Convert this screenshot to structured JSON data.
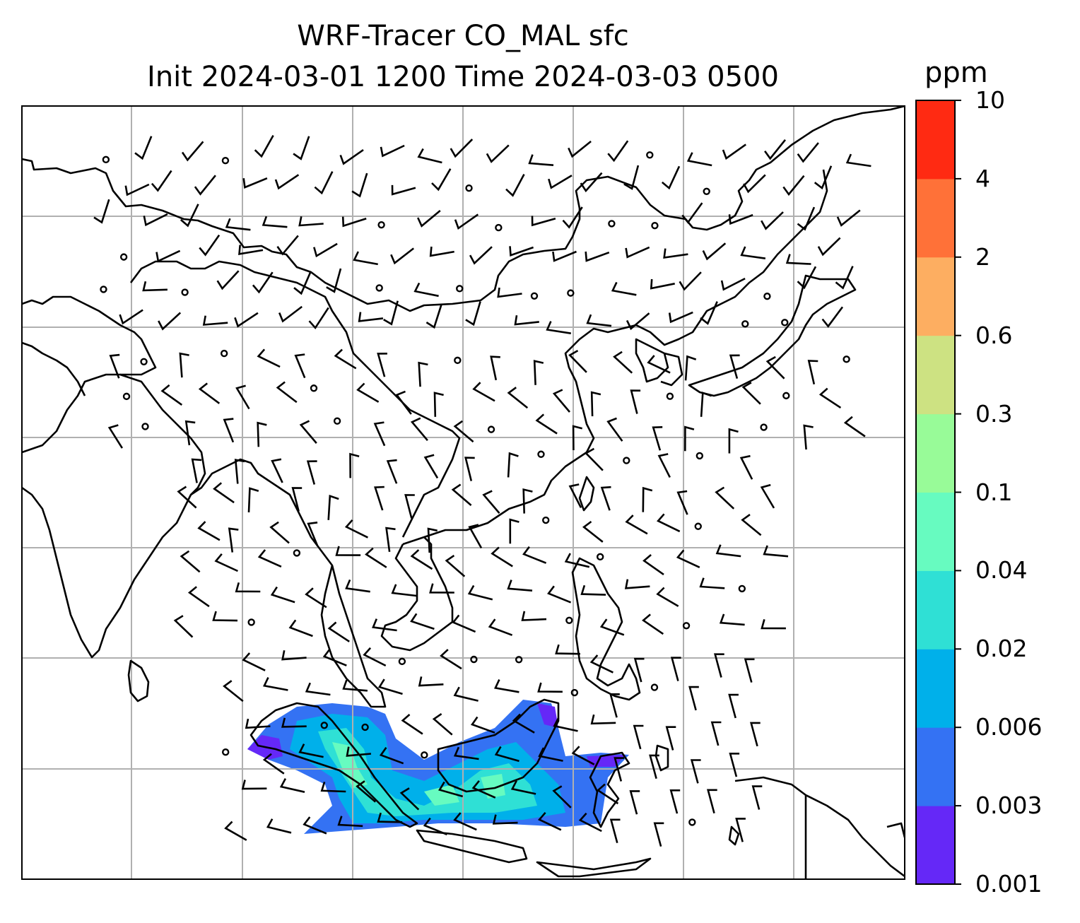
{
  "title": {
    "line1": "WRF-Tracer CO_MAL sfc",
    "line2": "Init 2024-03-01 1200 Time 2024-03-03 0500"
  },
  "colorbar": {
    "unit": "ppm",
    "levels": [
      "0.001",
      "0.003",
      "0.006",
      "0.02",
      "0.04",
      "0.1",
      "0.3",
      "0.6",
      "2",
      "4",
      "10"
    ],
    "colors": [
      "#6528f7",
      "#3472f3",
      "#00b0ea",
      "#2fe0d5",
      "#67fbc0",
      "#98fb98",
      "#cde282",
      "#fdae61",
      "#ff7138",
      "#ff2a12"
    ]
  },
  "map": {
    "coastline_color": "#000000",
    "grid_color": "#b0b0b0",
    "barb_color": "#000000"
  }
}
